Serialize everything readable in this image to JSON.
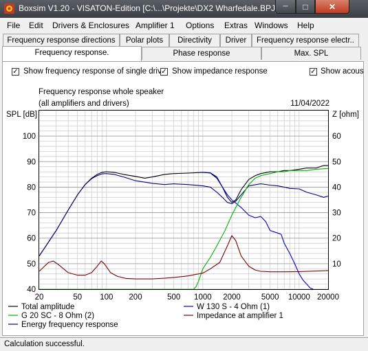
{
  "window": {
    "title": "Boxsim V1.20 - VISATON-Edition [C:\\...\\Projekte\\DX2 Wharfedale.BPJ]",
    "minimize_glyph": "─",
    "maximize_glyph": "□",
    "close_glyph": "✕"
  },
  "menu": [
    "File",
    "Edit",
    "Drivers & Enclosures",
    "Amplifier 1",
    "Options",
    "Extras",
    "Windows",
    "Help"
  ],
  "tabs_row1": [
    "Frequency response directions",
    "Polar plots",
    "Directivity",
    "Driver",
    "Frequency response electr.."
  ],
  "tabs_row2": [
    "Frequency response.",
    "Phase response",
    "Max. SPL"
  ],
  "options": [
    {
      "label": "Show frequency response of single drive",
      "checked": true
    },
    {
      "label": "Show impedance response",
      "checked": true
    },
    {
      "label": "Show acous",
      "checked": true
    }
  ],
  "check_glyph": "✓",
  "chart_header": {
    "title": "Frequency response whole speaker",
    "subtitle": "(all amplifiers and drivers)",
    "date": "11/04/2022",
    "left_axis_label": "SPL [dB]",
    "right_axis_label": "Z [ohm]"
  },
  "colors": {
    "total": "#000000",
    "woofer": "#0000c8",
    "tweeter": "#00b400",
    "impedance": "#7a0000",
    "energy": "#000080",
    "grid": "#c8c8c8"
  },
  "chart_data": {
    "type": "line",
    "title": "Frequency response whole speaker",
    "subtitle": "(all amplifiers and drivers)",
    "xlabel": "",
    "x_scale": "log",
    "xlim": [
      20,
      20000
    ],
    "x_ticks": [
      20,
      50,
      100,
      200,
      500,
      1000,
      2000,
      5000,
      10000,
      20000
    ],
    "x_tick_labels": [
      "20",
      "50",
      "100",
      "200",
      "500",
      "1000",
      "2000",
      "5000",
      "10000",
      "20000"
    ],
    "ylabel": "SPL [dB]",
    "ylim": [
      40,
      110
    ],
    "y_ticks": [
      40,
      50,
      60,
      70,
      80,
      90,
      100
    ],
    "y2label": "Z [ohm]",
    "y2lim": [
      0,
      70
    ],
    "y2_ticks": [
      10,
      20,
      30,
      40,
      50,
      60
    ],
    "grid": true,
    "legend_position": "bottom",
    "series": [
      {
        "name": "Total amplitude",
        "axis": "left",
        "color": "#000000",
        "points": [
          [
            20,
            53
          ],
          [
            25,
            58.5
          ],
          [
            30,
            63
          ],
          [
            40,
            71
          ],
          [
            50,
            77
          ],
          [
            60,
            81
          ],
          [
            70,
            83.5
          ],
          [
            80,
            85
          ],
          [
            90,
            85.8
          ],
          [
            100,
            86
          ],
          [
            120,
            85.8
          ],
          [
            150,
            85
          ],
          [
            200,
            84.2
          ],
          [
            250,
            83.5
          ],
          [
            300,
            84
          ],
          [
            400,
            85
          ],
          [
            500,
            85.3
          ],
          [
            700,
            85.5
          ],
          [
            1000,
            85.8
          ],
          [
            1200,
            85.5
          ],
          [
            1400,
            83.5
          ],
          [
            1600,
            80
          ],
          [
            1800,
            76
          ],
          [
            2000,
            74
          ],
          [
            2200,
            75
          ],
          [
            2500,
            79
          ],
          [
            3000,
            83
          ],
          [
            3500,
            84.5
          ],
          [
            4000,
            85.3
          ],
          [
            5000,
            86
          ],
          [
            6000,
            86
          ],
          [
            7000,
            86.5
          ],
          [
            8000,
            86.5
          ],
          [
            10000,
            87
          ],
          [
            12000,
            87.5
          ],
          [
            15000,
            87.5
          ],
          [
            18000,
            88.5
          ],
          [
            20000,
            88.5
          ]
        ]
      },
      {
        "name": "Energy frequency response",
        "axis": "left",
        "color": "#000080",
        "points": [
          [
            20,
            53
          ],
          [
            25,
            58.5
          ],
          [
            30,
            63
          ],
          [
            40,
            71
          ],
          [
            50,
            77
          ],
          [
            60,
            81
          ],
          [
            70,
            83.3
          ],
          [
            80,
            84.5
          ],
          [
            90,
            85.2
          ],
          [
            100,
            85.3
          ],
          [
            120,
            85
          ],
          [
            150,
            84
          ],
          [
            200,
            82.5
          ],
          [
            300,
            81.5
          ],
          [
            400,
            81
          ],
          [
            500,
            81.3
          ],
          [
            700,
            81
          ],
          [
            1000,
            80.5
          ],
          [
            1200,
            80
          ],
          [
            1400,
            78
          ],
          [
            1600,
            76
          ],
          [
            1800,
            74
          ],
          [
            2000,
            73.5
          ],
          [
            2200,
            74.5
          ],
          [
            2500,
            77
          ],
          [
            3000,
            80.5
          ],
          [
            4000,
            81.3
          ],
          [
            5000,
            80.8
          ],
          [
            6000,
            80.5
          ],
          [
            7000,
            80
          ],
          [
            8000,
            79.5
          ],
          [
            10000,
            79.3
          ],
          [
            12000,
            78
          ],
          [
            15000,
            77
          ],
          [
            18000,
            76
          ],
          [
            20000,
            76.5
          ]
        ]
      },
      {
        "name": "W 130 S - 4 Ohm (1)",
        "axis": "left",
        "color": "#0000c8",
        "points": [
          [
            1000,
            85.8
          ],
          [
            1200,
            85.6
          ],
          [
            1400,
            84
          ],
          [
            1600,
            80
          ],
          [
            1800,
            77
          ],
          [
            2000,
            75
          ],
          [
            2500,
            72
          ],
          [
            3000,
            69
          ],
          [
            3500,
            68
          ],
          [
            4000,
            68.5
          ],
          [
            4500,
            66.5
          ],
          [
            5000,
            63
          ],
          [
            6000,
            62
          ],
          [
            6500,
            61.5
          ],
          [
            7000,
            58
          ],
          [
            8000,
            54
          ],
          [
            9000,
            50
          ],
          [
            10000,
            46
          ],
          [
            11000,
            43.5
          ],
          [
            12000,
            42
          ],
          [
            13000,
            40.5
          ],
          [
            14000,
            40
          ]
        ]
      },
      {
        "name": "G 20 SC - 8 Ohm (2)",
        "axis": "left",
        "color": "#00b400",
        "points": [
          [
            20,
            40
          ],
          [
            500,
            40
          ],
          [
            800,
            40
          ],
          [
            850,
            41
          ],
          [
            900,
            43
          ],
          [
            950,
            45.5
          ],
          [
            1000,
            48
          ],
          [
            1200,
            52.5
          ],
          [
            1400,
            57
          ],
          [
            1700,
            63
          ],
          [
            2000,
            69
          ],
          [
            2500,
            76
          ],
          [
            3000,
            81
          ],
          [
            3500,
            83.5
          ],
          [
            4000,
            84.5
          ],
          [
            5000,
            85.3
          ],
          [
            6000,
            86
          ],
          [
            7000,
            86
          ],
          [
            8000,
            86.5
          ],
          [
            10000,
            86.5
          ],
          [
            12000,
            86.5
          ],
          [
            15000,
            87
          ],
          [
            20000,
            87.3
          ]
        ]
      },
      {
        "name": "Impedance at amplifier 1",
        "axis": "right",
        "color": "#7a0000",
        "points": [
          [
            20,
            7
          ],
          [
            22,
            8.5
          ],
          [
            25,
            10.5
          ],
          [
            28,
            11
          ],
          [
            32,
            9.5
          ],
          [
            40,
            6.5
          ],
          [
            50,
            5.5
          ],
          [
            60,
            5.5
          ],
          [
            70,
            6.5
          ],
          [
            80,
            9
          ],
          [
            88,
            11
          ],
          [
            95,
            10
          ],
          [
            110,
            6.5
          ],
          [
            130,
            5
          ],
          [
            160,
            4.2
          ],
          [
            200,
            4
          ],
          [
            300,
            4
          ],
          [
            400,
            4.3
          ],
          [
            500,
            4.6
          ],
          [
            700,
            5.2
          ],
          [
            1000,
            6.3
          ],
          [
            1200,
            8
          ],
          [
            1500,
            10.5
          ],
          [
            1800,
            17
          ],
          [
            2000,
            21
          ],
          [
            2200,
            19
          ],
          [
            2500,
            13
          ],
          [
            3000,
            9
          ],
          [
            3500,
            7.5
          ],
          [
            4000,
            7
          ],
          [
            5000,
            6.8
          ],
          [
            7000,
            6.8
          ],
          [
            10000,
            6.9
          ],
          [
            15000,
            7.1
          ],
          [
            20000,
            7.3
          ]
        ]
      }
    ]
  },
  "legend": [
    {
      "label": "Total amplitude",
      "color": "#000000"
    },
    {
      "label": "W 130 S - 4 Ohm (1)",
      "color": "#0000c8"
    },
    {
      "label": "G 20 SC - 8 Ohm (2)",
      "color": "#00b400"
    },
    {
      "label": "Impedance at amplifier 1",
      "color": "#7a0000"
    },
    {
      "label": "Energy frequency response",
      "color": "#000080"
    }
  ],
  "status": {
    "text": "Calculation successful."
  }
}
